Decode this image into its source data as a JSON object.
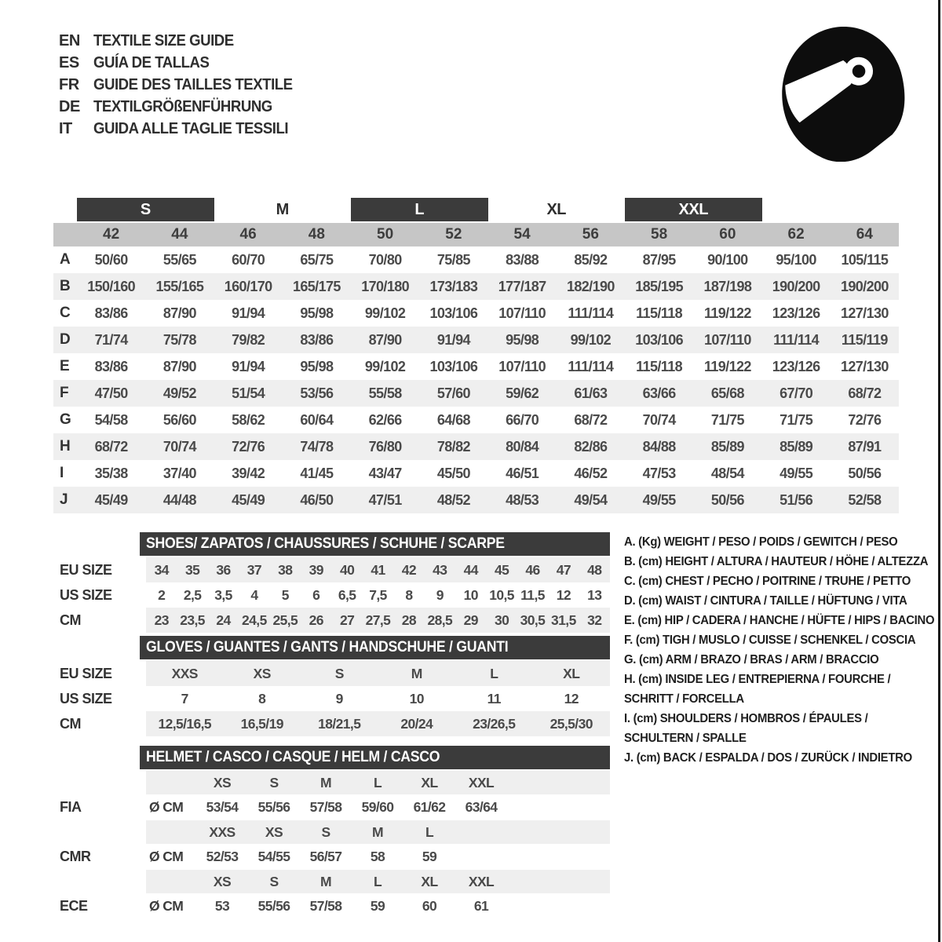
{
  "header": {
    "languages": [
      {
        "code": "EN",
        "title": "TEXTILE SIZE GUIDE"
      },
      {
        "code": "ES",
        "title": "GUÍA DE TALLAS"
      },
      {
        "code": "FR",
        "title": "GUIDE DES TAILLES TEXTILE"
      },
      {
        "code": "DE",
        "title": "TEXTILGRÖßENFÜHRUNG"
      },
      {
        "code": "IT",
        "title": "GUIDA ALLE TAGLIE TESSILI"
      }
    ],
    "helmet_icon": "racing-helmet"
  },
  "main_table": {
    "size_groups": [
      {
        "label": "S",
        "dark": true
      },
      {
        "label": "M",
        "dark": false
      },
      {
        "label": "L",
        "dark": true
      },
      {
        "label": "XL",
        "dark": false
      },
      {
        "label": "XXL",
        "dark": true
      }
    ],
    "columns": [
      "42",
      "44",
      "46",
      "48",
      "50",
      "52",
      "54",
      "56",
      "58",
      "60",
      "62",
      "64"
    ],
    "rows": [
      {
        "label": "A",
        "values": [
          "50/60",
          "55/65",
          "60/70",
          "65/75",
          "70/80",
          "75/85",
          "83/88",
          "85/92",
          "87/95",
          "90/100",
          "95/100",
          "105/115"
        ]
      },
      {
        "label": "B",
        "values": [
          "150/160",
          "155/165",
          "160/170",
          "165/175",
          "170/180",
          "173/183",
          "177/187",
          "182/190",
          "185/195",
          "187/198",
          "190/200",
          "190/200"
        ]
      },
      {
        "label": "C",
        "values": [
          "83/86",
          "87/90",
          "91/94",
          "95/98",
          "99/102",
          "103/106",
          "107/110",
          "111/114",
          "115/118",
          "119/122",
          "123/126",
          "127/130"
        ]
      },
      {
        "label": "D",
        "values": [
          "71/74",
          "75/78",
          "79/82",
          "83/86",
          "87/90",
          "91/94",
          "95/98",
          "99/102",
          "103/106",
          "107/110",
          "111/114",
          "115/119"
        ]
      },
      {
        "label": "E",
        "values": [
          "83/86",
          "87/90",
          "91/94",
          "95/98",
          "99/102",
          "103/106",
          "107/110",
          "111/114",
          "115/118",
          "119/122",
          "123/126",
          "127/130"
        ]
      },
      {
        "label": "F",
        "values": [
          "47/50",
          "49/52",
          "51/54",
          "53/56",
          "55/58",
          "57/60",
          "59/62",
          "61/63",
          "63/66",
          "65/68",
          "67/70",
          "68/72"
        ]
      },
      {
        "label": "G",
        "values": [
          "54/58",
          "56/60",
          "58/62",
          "60/64",
          "62/66",
          "64/68",
          "66/70",
          "68/72",
          "70/74",
          "71/75",
          "71/75",
          "72/76"
        ]
      },
      {
        "label": "H",
        "values": [
          "68/72",
          "70/74",
          "72/76",
          "74/78",
          "76/80",
          "78/82",
          "80/84",
          "82/86",
          "84/88",
          "85/89",
          "85/89",
          "87/91"
        ]
      },
      {
        "label": "I",
        "values": [
          "35/38",
          "37/40",
          "39/42",
          "41/45",
          "43/47",
          "45/50",
          "46/51",
          "46/52",
          "47/53",
          "48/54",
          "49/55",
          "50/56"
        ]
      },
      {
        "label": "J",
        "values": [
          "45/49",
          "44/48",
          "45/49",
          "46/50",
          "47/51",
          "48/52",
          "48/53",
          "49/54",
          "49/55",
          "50/56",
          "51/56",
          "52/58"
        ]
      }
    ]
  },
  "shoes_table": {
    "title": "SHOES/ ZAPATOS / CHAUSSURES / SCHUHE / SCARPE",
    "rows": [
      {
        "label": "EU SIZE",
        "shaded": true,
        "values": [
          "34",
          "35",
          "36",
          "37",
          "38",
          "39",
          "40",
          "41",
          "42",
          "43",
          "44",
          "45",
          "46",
          "47",
          "48"
        ]
      },
      {
        "label": "US SIZE",
        "shaded": false,
        "values": [
          "2",
          "2,5",
          "3,5",
          "4",
          "5",
          "6",
          "6,5",
          "7,5",
          "8",
          "9",
          "10",
          "10,5",
          "11,5",
          "12",
          "13"
        ]
      },
      {
        "label": "CM",
        "shaded": true,
        "values": [
          "23",
          "23,5",
          "24",
          "24,5",
          "25,5",
          "26",
          "27",
          "27,5",
          "28",
          "28,5",
          "29",
          "30",
          "30,5",
          "31,5",
          "32"
        ]
      }
    ]
  },
  "gloves_table": {
    "title": "GLOVES / GUANTES / GANTS / HANDSCHUHE / GUANTI",
    "rows": [
      {
        "label": "EU SIZE",
        "shaded": true,
        "values": [
          "XXS",
          "XS",
          "S",
          "M",
          "L",
          "XL"
        ]
      },
      {
        "label": "US SIZE",
        "shaded": false,
        "values": [
          "7",
          "8",
          "9",
          "10",
          "11",
          "12"
        ]
      },
      {
        "label": "CM",
        "shaded": true,
        "values": [
          "12,5/16,5",
          "16,5/19",
          "18/21,5",
          "20/24",
          "23/26,5",
          "25,5/30"
        ]
      }
    ]
  },
  "helmet_table": {
    "title": "HELMET / CASCO / CASQUE / HELM / CASCO",
    "sections": [
      {
        "standard": "FIA",
        "prefix": "Ø CM",
        "sizes": [
          "XS",
          "S",
          "M",
          "L",
          "XL",
          "XXL"
        ],
        "values": [
          "53/54",
          "55/56",
          "57/58",
          "59/60",
          "61/62",
          "63/64"
        ]
      },
      {
        "standard": "CMR",
        "prefix": "Ø CM",
        "sizes": [
          "XXS",
          "XS",
          "S",
          "M",
          "L"
        ],
        "values": [
          "52/53",
          "54/55",
          "56/57",
          "58",
          "59"
        ]
      },
      {
        "standard": "ECE",
        "prefix": "Ø CM",
        "sizes": [
          "XS",
          "S",
          "M",
          "L",
          "XL",
          "XXL"
        ],
        "values": [
          "53",
          "55/56",
          "57/58",
          "59",
          "60",
          "61"
        ]
      }
    ]
  },
  "legend": {
    "items": [
      {
        "lines": [
          "A. (Kg) WEIGHT / PESO / POIDS / GEWITCH / PESO"
        ]
      },
      {
        "lines": [
          "B. (cm) HEIGHT / ALTURA / HAUTEUR / HÖHE / ALTEZZA"
        ]
      },
      {
        "lines": [
          "C. (cm) CHEST / PECHO / POITRINE / TRUHE / PETTO"
        ]
      },
      {
        "lines": [
          "D. (cm) WAIST / CINTURA / TAILLE / HÜFTUNG / VITA"
        ]
      },
      {
        "lines": [
          "E. (cm) HIP / CADERA / HANCHE / HÜFTE / HIPS /  BACINO"
        ]
      },
      {
        "lines": [
          "F. (cm) TIGH / MUSLO / CUISSE / SCHENKEL / COSCIA"
        ]
      },
      {
        "lines": [
          "G. (cm) ARM  / BRAZO / BRAS / ARM / BRACCIO"
        ]
      },
      {
        "lines": [
          "H. (cm) INSIDE LEG / ENTREPIERNA / FOURCHE /",
          "SCHRITT / FORCELLA"
        ]
      },
      {
        "lines": [
          "I.  (cm) SHOULDERS / HOMBROS / ÉPAULES /",
          "SCHULTERN / SPALLE"
        ]
      },
      {
        "lines": [
          "J. (cm) BACK / ESPALDA / DOS / ZURÜCK / INDIETRO"
        ]
      }
    ]
  },
  "colors": {
    "dark_bar": "#3b3b3b",
    "band": "#c6c6c6",
    "row_shade": "#efefef",
    "ink": "#2e2e2e"
  }
}
